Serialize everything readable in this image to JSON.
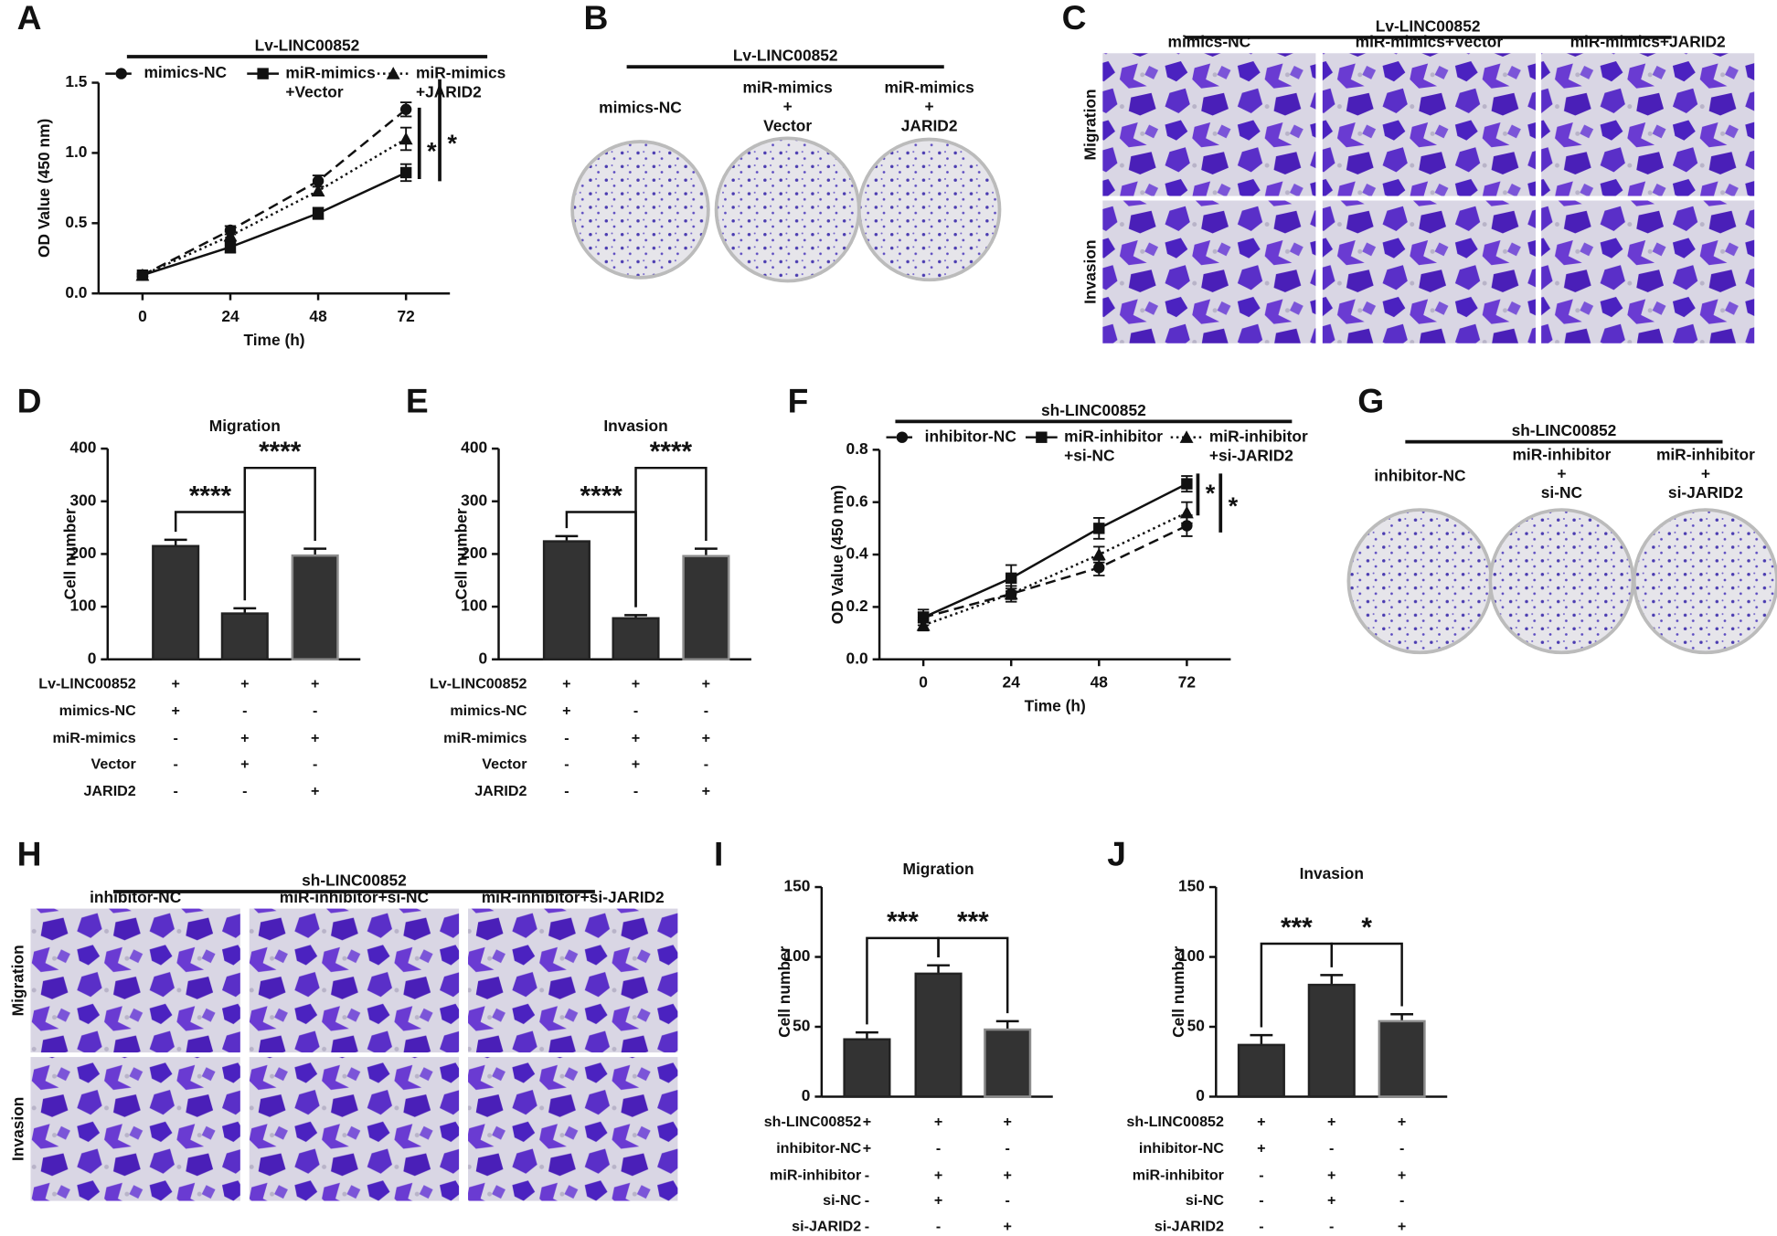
{
  "panel_labels": [
    "A",
    "B",
    "C",
    "D",
    "E",
    "F",
    "G",
    "H",
    "I",
    "J"
  ],
  "colony_assays": [
    {
      "bracket": "Lv-LINC00852",
      "groups": [
        "mimics-NC",
        "miR-mimics\n+\nVector",
        "miR-mimics\n+\nJARID2"
      ]
    },
    {
      "bracket": "sh-LINC00852",
      "groups": [
        "inhibitor-NC",
        "miR-inhibitor\n+\nsi-NC",
        "miR-inhibitor\n+\nsi-JARID2"
      ]
    }
  ],
  "transwell_assays": [
    {
      "bracket": "Lv-LINC00852",
      "groups": [
        "mimics-NC",
        "miR-mimics+Vector",
        "miR-mimics+JARID2"
      ],
      "rows": [
        "Migration",
        "Invasion"
      ]
    },
    {
      "bracket": "sh-LINC00852",
      "groups": [
        "inhibitor-NC",
        "miR-inhibitor+si-NC",
        "miR-inhibitor+si-JARID2"
      ],
      "rows": [
        "Migration",
        "Invasion"
      ]
    }
  ],
  "chart_data": [
    {
      "type": "line",
      "bracket_label": "Lv-LINC00852",
      "x_label": "Time (h)",
      "y_label": "OD Value (450 nm)",
      "x": [
        0,
        24,
        48,
        72
      ],
      "xlim": [
        -12,
        84
      ],
      "xticks": [
        0,
        24,
        48,
        72
      ],
      "ylim": [
        0,
        1.5
      ],
      "yticks": [
        {
          "value": 0,
          "label": "0.0"
        },
        0.5,
        {
          "value": 1,
          "label": "1.0"
        },
        1.5
      ],
      "series": [
        {
          "name": "mimics-NC",
          "color": "#111111",
          "line_style": "dashed",
          "marker": "circle",
          "values": [
            0.13,
            0.45,
            0.8,
            1.31
          ],
          "errors": [
            0.01,
            0.03,
            0.04,
            0.05
          ]
        },
        {
          "name": "miR-mimics\n+Vector",
          "color": "#111111",
          "line_style": "solid",
          "marker": "square",
          "values": [
            0.13,
            0.33,
            0.57,
            0.86
          ],
          "errors": [
            0.01,
            0.04,
            0.04,
            0.06
          ]
        },
        {
          "name": "miR-mimics\n+JARID2",
          "color": "#111111",
          "line_style": "dotted",
          "marker": "triangle",
          "values": [
            0.13,
            0.41,
            0.73,
            1.1
          ],
          "errors": [
            0.01,
            0.03,
            0.03,
            0.08
          ]
        }
      ],
      "significance": [
        "*",
        "*"
      ]
    },
    {
      "type": "bar",
      "title": "Migration",
      "y_label": "Cell number",
      "ylim": [
        0,
        400
      ],
      "yticks": [
        0,
        100,
        200,
        300,
        400
      ],
      "values": [
        215,
        87,
        197
      ],
      "errors": [
        12,
        10,
        13
      ],
      "colors": [
        "#333333",
        "#333333",
        "#333333"
      ],
      "edgecolors": [
        "#222222",
        "#222222",
        "#8c8c8c"
      ],
      "significance": [
        "****",
        "****"
      ],
      "conditions": {
        "rows": [
          "Lv-LINC00852",
          "mimics-NC",
          "miR-mimics",
          "Vector",
          "JARID2"
        ],
        "cells": [
          [
            "+",
            "+",
            "+"
          ],
          [
            "+",
            "-",
            "-"
          ],
          [
            "-",
            "+",
            "+"
          ],
          [
            "-",
            "+",
            "-"
          ],
          [
            "-",
            "-",
            "+"
          ]
        ]
      }
    },
    {
      "type": "bar",
      "title": "Invasion",
      "y_label": "Cell number",
      "ylim": [
        0,
        400
      ],
      "yticks": [
        0,
        100,
        200,
        300,
        400
      ],
      "values": [
        224,
        78,
        196
      ],
      "errors": [
        10,
        6,
        14
      ],
      "colors": [
        "#333333",
        "#333333",
        "#333333"
      ],
      "edgecolors": [
        "#222222",
        "#222222",
        "#8c8c8c"
      ],
      "significance": [
        "****",
        "****"
      ],
      "conditions": {
        "rows": [
          "Lv-LINC00852",
          "mimics-NC",
          "miR-mimics",
          "Vector",
          "JARID2"
        ],
        "cells": [
          [
            "+",
            "+",
            "+"
          ],
          [
            "+",
            "-",
            "-"
          ],
          [
            "-",
            "+",
            "+"
          ],
          [
            "-",
            "+",
            "-"
          ],
          [
            "-",
            "-",
            "+"
          ]
        ]
      }
    },
    {
      "type": "line",
      "bracket_label": "sh-LINC00852",
      "x_label": "Time (h)",
      "y_label": "OD Value (450 nm)",
      "x": [
        0,
        24,
        48,
        72
      ],
      "xlim": [
        -12,
        84
      ],
      "xticks": [
        0,
        24,
        48,
        72
      ],
      "ylim": [
        0,
        0.8
      ],
      "yticks": [
        {
          "value": 0,
          "label": "0.0"
        },
        0.2,
        0.4,
        0.6,
        0.8
      ],
      "series": [
        {
          "name": "inhibitor-NC",
          "color": "#111111",
          "line_style": "dashed",
          "marker": "circle",
          "values": [
            0.16,
            0.25,
            0.35,
            0.51
          ],
          "errors": [
            0.02,
            0.02,
            0.03,
            0.04
          ]
        },
        {
          "name": "miR-inhibitor\n+si-NC",
          "color": "#111111",
          "line_style": "solid",
          "marker": "square",
          "values": [
            0.16,
            0.31,
            0.5,
            0.67
          ],
          "errors": [
            0.03,
            0.05,
            0.04,
            0.03
          ]
        },
        {
          "name": "miR-inhibitor\n+si-JARID2",
          "color": "#111111",
          "line_style": "dotted",
          "marker": "triangle",
          "values": [
            0.13,
            0.25,
            0.4,
            0.56
          ],
          "errors": [
            0.02,
            0.03,
            0.03,
            0.04
          ]
        }
      ],
      "significance": [
        "*",
        "*"
      ]
    },
    {
      "type": "bar",
      "title": "Migration",
      "y_label": "Cell number",
      "ylim": [
        0,
        150
      ],
      "yticks": [
        0,
        50,
        100,
        150
      ],
      "values": [
        41,
        88,
        48
      ],
      "errors": [
        5,
        6,
        6
      ],
      "colors": [
        "#333333",
        "#333333",
        "#333333"
      ],
      "edgecolors": [
        "#222222",
        "#222222",
        "#8c8c8c"
      ],
      "significance": [
        "***",
        "***"
      ],
      "conditions": {
        "rows": [
          "sh-LINC00852",
          "inhibitor-NC",
          "miR-inhibitor",
          "si-NC",
          "si-JARID2"
        ],
        "cells": [
          [
            "+",
            "+",
            "+"
          ],
          [
            "+",
            "-",
            "-"
          ],
          [
            "-",
            "+",
            "+"
          ],
          [
            "-",
            "+",
            "-"
          ],
          [
            "-",
            "-",
            "+"
          ]
        ]
      }
    },
    {
      "type": "bar",
      "title": "Invasion",
      "y_label": "Cell number",
      "ylim": [
        0,
        150
      ],
      "yticks": [
        0,
        50,
        100,
        150
      ],
      "values": [
        37,
        80,
        54
      ],
      "errors": [
        7,
        7,
        5
      ],
      "colors": [
        "#333333",
        "#333333",
        "#333333"
      ],
      "edgecolors": [
        "#222222",
        "#222222",
        "#8c8c8c"
      ],
      "significance": [
        "***",
        "*"
      ],
      "conditions": {
        "rows": [
          "sh-LINC00852",
          "inhibitor-NC",
          "miR-inhibitor",
          "si-NC",
          "si-JARID2"
        ],
        "cells": [
          [
            "+",
            "+",
            "+"
          ],
          [
            "+",
            "-",
            "-"
          ],
          [
            "-",
            "+",
            "+"
          ],
          [
            "-",
            "+",
            "-"
          ],
          [
            "-",
            "-",
            "+"
          ]
        ]
      }
    }
  ]
}
